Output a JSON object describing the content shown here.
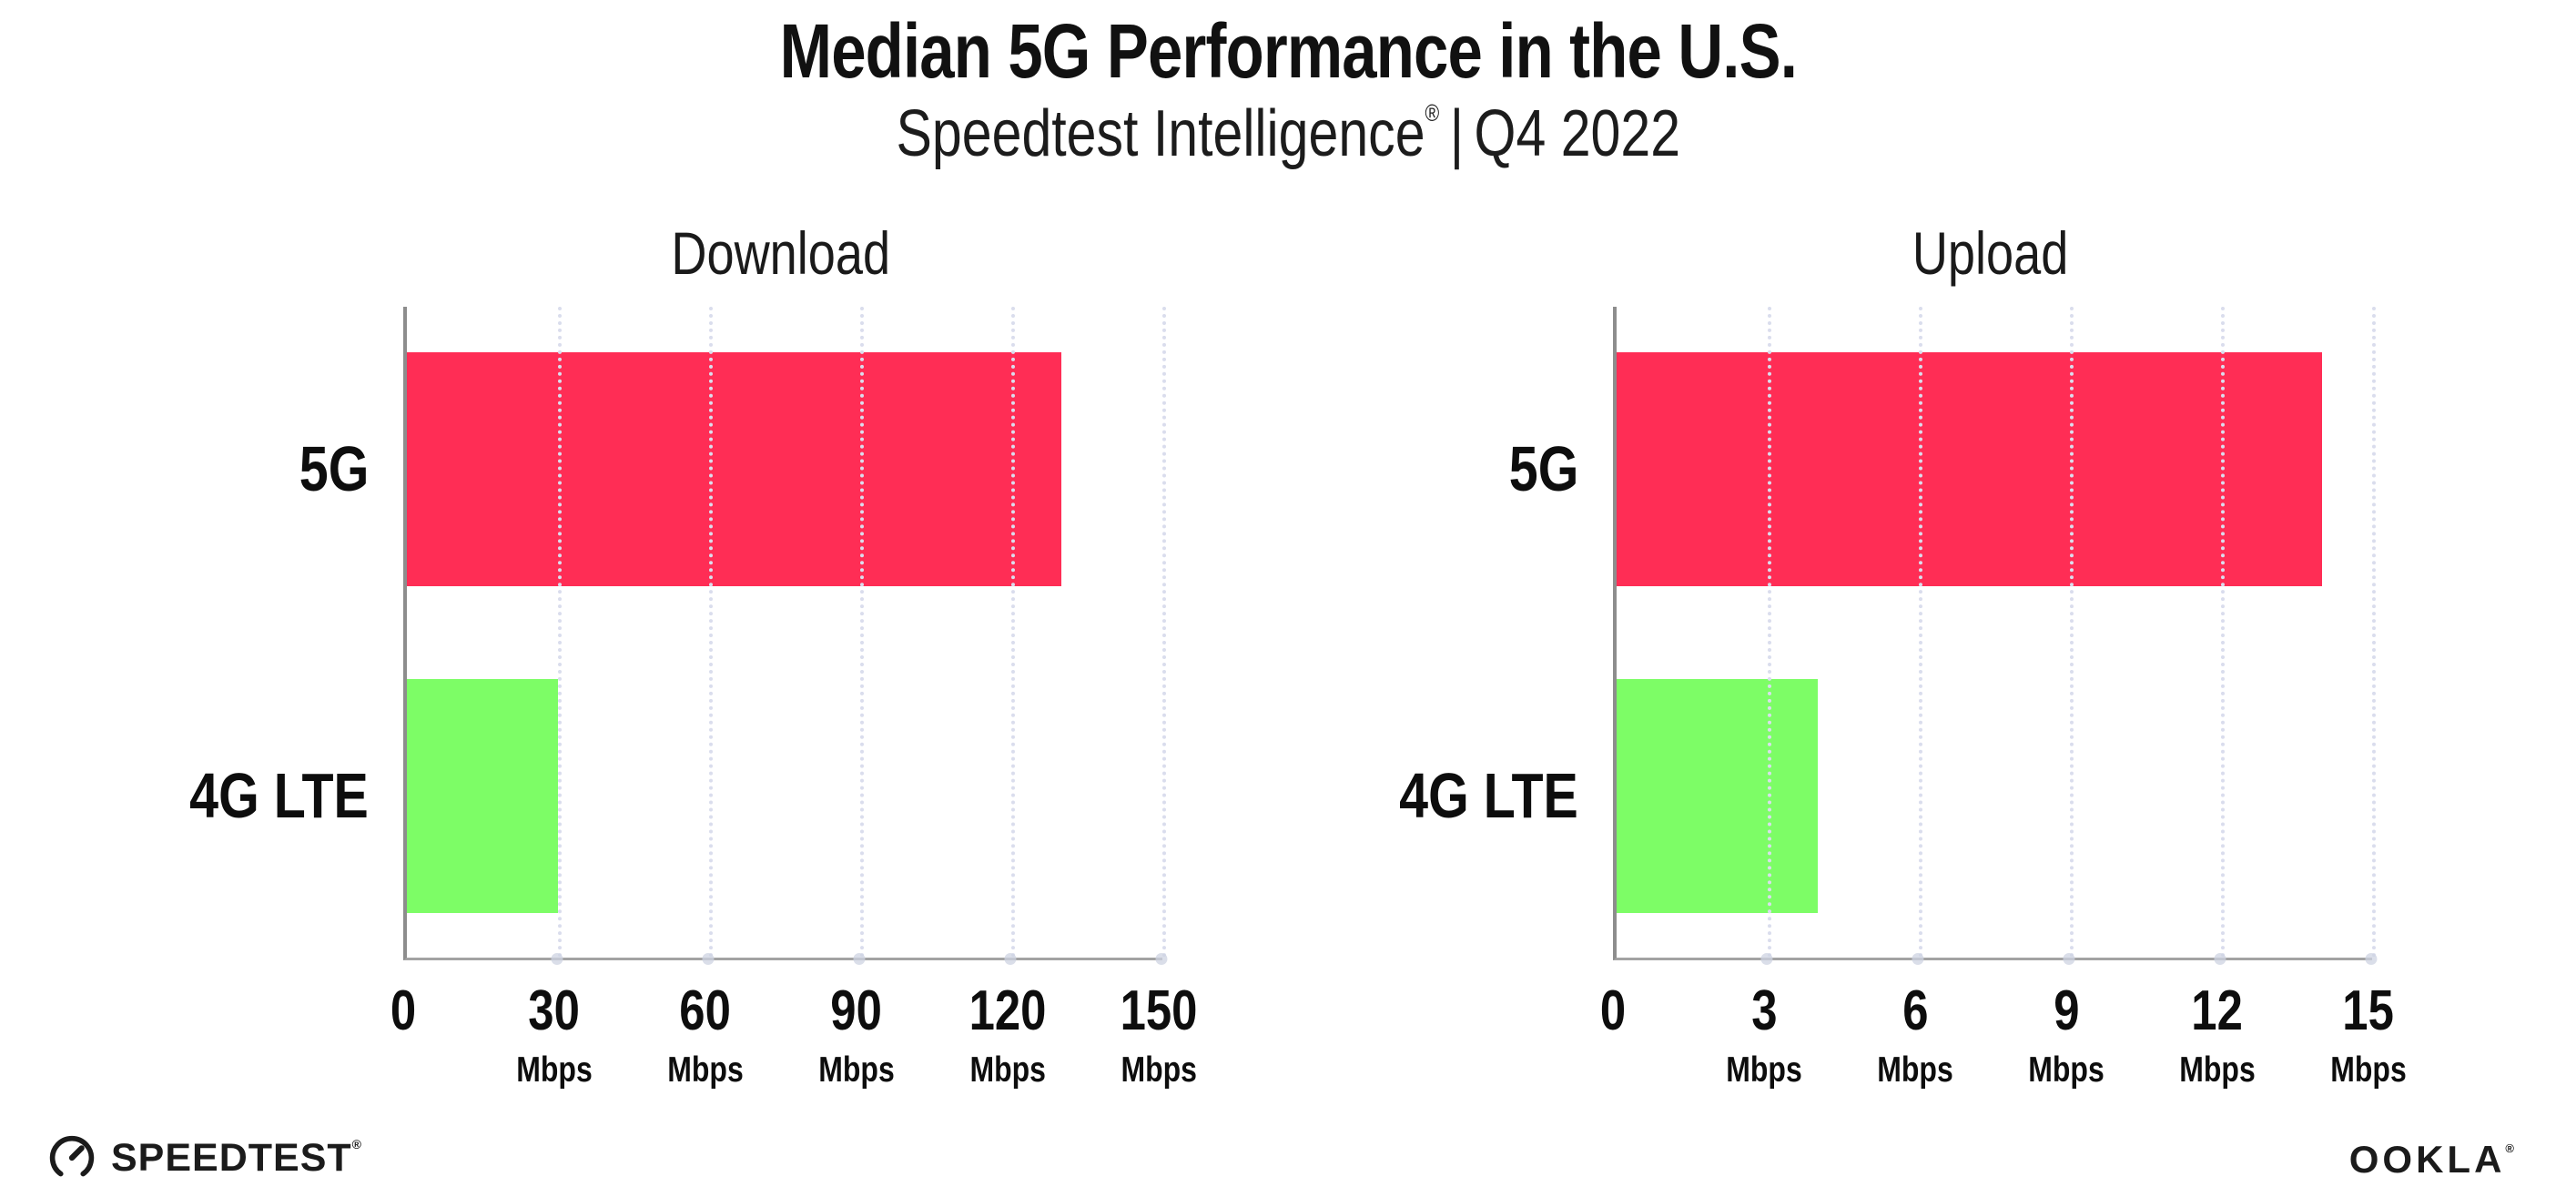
{
  "header": {
    "title": "Median 5G Performance in the U.S.",
    "subtitle_brand": "Speedtest Intelligence",
    "subtitle_reg": "®",
    "subtitle_sep": "|",
    "subtitle_period": "Q4 2022"
  },
  "chart_data": [
    {
      "type": "bar",
      "orientation": "horizontal",
      "title": "Download",
      "categories": [
        "5G",
        "4G LTE"
      ],
      "values": [
        130,
        30
      ],
      "unit": "Mbps",
      "xlim": [
        0,
        150
      ],
      "ticks": [
        0,
        30,
        60,
        90,
        120,
        150
      ],
      "bar_colors": [
        "#FF2D55",
        "#7DFD66"
      ],
      "grid": "dotted-vertical",
      "legend": "none"
    },
    {
      "type": "bar",
      "orientation": "horizontal",
      "title": "Upload",
      "categories": [
        "5G",
        "4G LTE"
      ],
      "values": [
        14,
        4
      ],
      "unit": "Mbps",
      "xlim": [
        0,
        15
      ],
      "ticks": [
        0,
        3,
        6,
        9,
        12,
        15
      ],
      "bar_colors": [
        "#FF2D55",
        "#7DFD66"
      ],
      "grid": "dotted-vertical",
      "legend": "none"
    }
  ],
  "footer": {
    "speedtest_label": "SPEEDTEST",
    "speedtest_reg": "®",
    "ookla_label": "OOKLA",
    "ookla_reg": "®"
  },
  "colors": {
    "bar_5g": "#FF2D55",
    "bar_4g_lte": "#7DFD66",
    "axis_left": "#8D8D8D",
    "axis_bottom": "#A3A3A3",
    "grid_dot": "#DADDED",
    "text": "#111111"
  }
}
